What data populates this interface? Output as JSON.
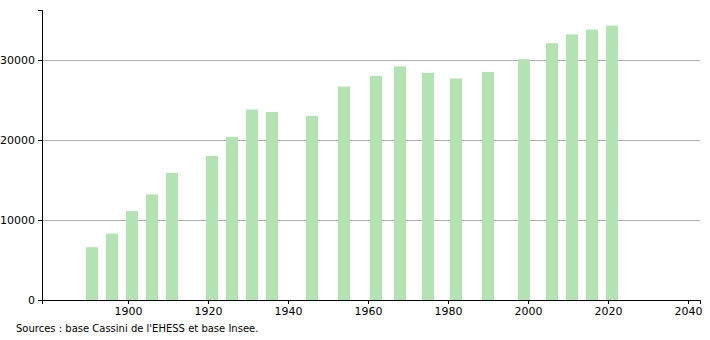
{
  "chart_data": {
    "type": "bar",
    "x": [
      1891,
      1896,
      1901,
      1906,
      1911,
      1921,
      1926,
      1931,
      1936,
      1946,
      1954,
      1962,
      1968,
      1975,
      1982,
      1990,
      1999,
      2006,
      2011,
      2016,
      2021
    ],
    "values": [
      6600,
      8300,
      11100,
      13200,
      15900,
      18000,
      20400,
      23800,
      23500,
      23000,
      26700,
      28000,
      29200,
      28400,
      27700,
      28500,
      30100,
      32100,
      33200,
      33800,
      34300
    ],
    "color": "#b3e3b3",
    "xlim": [
      1878.5,
      2043
    ],
    "xticks": [
      1900,
      1920,
      1940,
      1960,
      1980,
      2000,
      2020,
      2040
    ],
    "ylim": [
      0,
      36250
    ],
    "yticks": [
      0,
      10000,
      20000,
      30000
    ],
    "grid": true,
    "source": "Sources : base Cassini de l'EHESS et base Insee."
  }
}
